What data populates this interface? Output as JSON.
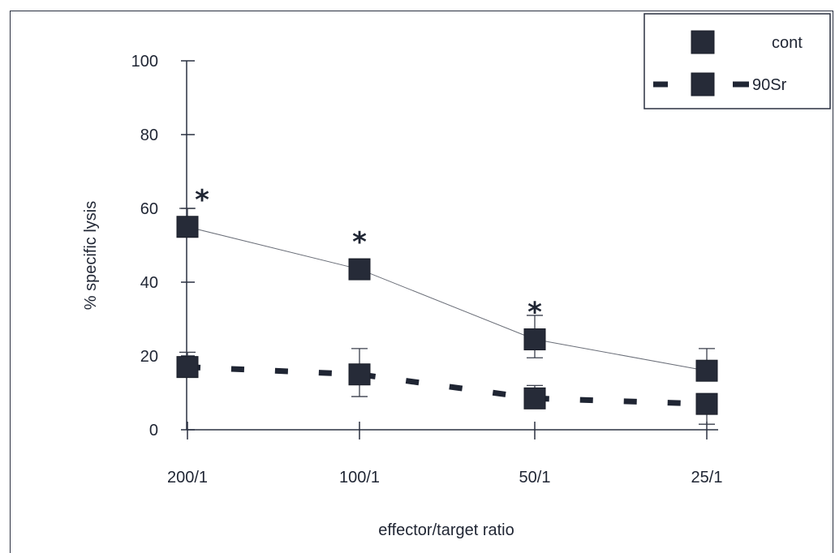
{
  "chart_data": {
    "type": "line",
    "title": "",
    "xlabel": "effector/target ratio",
    "ylabel": "% specific lysis",
    "categories": [
      "200/1",
      "100/1",
      "50/1",
      "25/1"
    ],
    "ylim": [
      0,
      100
    ],
    "yticks": [
      0,
      20,
      40,
      60,
      80,
      100
    ],
    "grid": false,
    "legend_position": "top-right",
    "series": [
      {
        "name": "cont",
        "style": "solid",
        "color": "#1f2533",
        "values": [
          55,
          43.5,
          24.5,
          16
        ],
        "error": [
          [
            null,
            60
          ],
          [
            null,
            null
          ],
          [
            19.5,
            31
          ],
          [
            null,
            22
          ]
        ]
      },
      {
        "name": "90Sr",
        "style": "dashed",
        "color": "#1f2533",
        "values": [
          17,
          15,
          8.5,
          7
        ],
        "error": [
          [
            null,
            21
          ],
          [
            9,
            22
          ],
          [
            null,
            12
          ],
          [
            1.5,
            null
          ]
        ]
      }
    ],
    "annotations": [
      {
        "text": "*",
        "category": "200/1"
      },
      {
        "text": "*",
        "category": "100/1"
      },
      {
        "text": "*",
        "category": "50/1"
      }
    ]
  }
}
